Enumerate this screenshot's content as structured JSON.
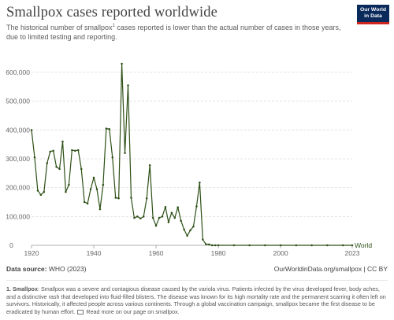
{
  "header": {
    "title": "Smallpox cases reported worldwide",
    "subtitle_before": "The historical number of smallpox",
    "subtitle_sup": "1",
    "subtitle_after": " cases reported is lower than the actual number of cases in those years, due to limited testing and reporting."
  },
  "logo": {
    "line1": "Our World",
    "line2": "in Data"
  },
  "footer": {
    "source_label": "Data source:",
    "source_value": " WHO (2023)",
    "credit": "OurWorldinData.org/smallpox | CC BY"
  },
  "note": {
    "heading": "1. Smallpox",
    "text": ": Smallpox was a severe and contagious disease caused by the variola virus. Patients infected by the virus developed fever, body aches, and a distinctive rash that developed into fluid-filled blisters. The disease was known for its high mortality rate and the permanent scarring it often left on survivors. Historically, it affected people across various continents. Through a global vaccination campaign, smallpox became the first disease to be eradicated by human effort.",
    "link_text": " Read more on our page on smallpox."
  },
  "colors": {
    "series": "#2d5016",
    "grid": "#dddddd",
    "axis_text": "#666666"
  },
  "chart_data": {
    "type": "line",
    "title": "Smallpox cases reported worldwide",
    "xlabel": "",
    "ylabel": "",
    "xlim": [
      1920,
      2023
    ],
    "ylim": [
      0,
      660000
    ],
    "x_ticks": [
      1920,
      1940,
      1960,
      1980,
      2000,
      2023
    ],
    "y_ticks": [
      100000,
      200000,
      300000,
      400000,
      500000,
      600000
    ],
    "y_tick_labels": [
      "100,000",
      "200,000",
      "300,000",
      "400,000",
      "500,000",
      "600,000"
    ],
    "x_tick_labels": [
      "1920",
      "1940",
      "1960",
      "1980",
      "2000",
      "2023"
    ],
    "y_zero_label": "0",
    "grid": true,
    "series": [
      {
        "name": "World",
        "x": [
          1920,
          1921,
          1922,
          1923,
          1924,
          1925,
          1926,
          1927,
          1928,
          1929,
          1930,
          1931,
          1932,
          1933,
          1934,
          1935,
          1936,
          1937,
          1938,
          1939,
          1940,
          1941,
          1942,
          1943,
          1944,
          1945,
          1946,
          1947,
          1948,
          1949,
          1950,
          1951,
          1952,
          1953,
          1954,
          1955,
          1956,
          1957,
          1958,
          1959,
          1960,
          1961,
          1962,
          1963,
          1964,
          1965,
          1966,
          1967,
          1968,
          1969,
          1970,
          1971,
          1972,
          1973,
          1974,
          1975,
          1976,
          1977,
          1978,
          1979,
          1980,
          1985,
          1990,
          1995,
          2000,
          2005,
          2010,
          2015,
          2020,
          2023
        ],
        "y": [
          400000,
          305000,
          190000,
          175000,
          185000,
          285000,
          325000,
          328000,
          272000,
          265000,
          360000,
          185000,
          210000,
          330000,
          328000,
          330000,
          265000,
          150000,
          145000,
          195000,
          235000,
          195000,
          125000,
          210000,
          405000,
          403000,
          305000,
          165000,
          163000,
          630000,
          320000,
          555000,
          165000,
          95000,
          100000,
          93000,
          100000,
          163000,
          278000,
          95000,
          68000,
          95000,
          100000,
          133000,
          80000,
          113000,
          95000,
          132000,
          85000,
          55000,
          33000,
          52000,
          65000,
          135000,
          218000,
          20000,
          4000,
          3000,
          0,
          0,
          0,
          0,
          0,
          0,
          0,
          0,
          0,
          0,
          0,
          0
        ]
      }
    ]
  }
}
